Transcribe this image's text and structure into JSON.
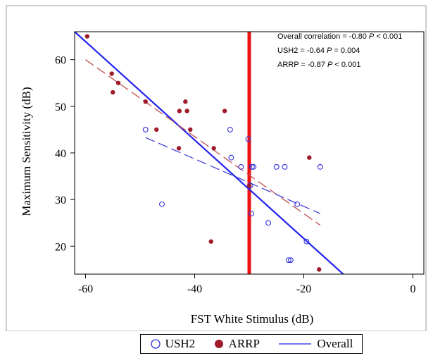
{
  "chart_data": {
    "type": "scatter",
    "xlabel": "FST White Stimulus (dB)",
    "ylabel": "Maximum Sensitivity (dB)",
    "xlim": [
      -62,
      2
    ],
    "ylim": [
      14,
      66
    ],
    "x_ticks": [
      -60,
      -40,
      -20,
      0
    ],
    "y_ticks": [
      20,
      30,
      40,
      50,
      60
    ],
    "grid": false,
    "legend_position": "bottom",
    "vertical_marker_x": -30,
    "annotations": [
      "Overall correlation = -0.80 P < 0.001",
      "USH2 = -0.64 P = 0.004",
      "ARRP = -0.87 P < 0.001"
    ],
    "series": [
      {
        "name": "USH2",
        "marker": "open-circle",
        "color": "#3333dd",
        "points": [
          [
            -49,
            45
          ],
          [
            -46,
            29
          ],
          [
            -33.5,
            45
          ],
          [
            -33.3,
            39
          ],
          [
            -31.5,
            37
          ],
          [
            -30.2,
            43
          ],
          [
            -29.8,
            33
          ],
          [
            -29.6,
            27
          ],
          [
            -29.5,
            37
          ],
          [
            -29.2,
            37
          ],
          [
            -26.5,
            25
          ],
          [
            -25,
            37
          ],
          [
            -23.5,
            37
          ],
          [
            -22.8,
            17
          ],
          [
            -22.4,
            17
          ],
          [
            -21.2,
            29
          ],
          [
            -19.5,
            21
          ],
          [
            -17,
            37
          ]
        ]
      },
      {
        "name": "ARRP",
        "marker": "filled-circle",
        "color": "#a01b2a",
        "points": [
          [
            -59.7,
            65
          ],
          [
            -55.2,
            57
          ],
          [
            -55,
            53
          ],
          [
            -54,
            55
          ],
          [
            -49,
            51
          ],
          [
            -47,
            45
          ],
          [
            -42.9,
            41
          ],
          [
            -42.8,
            49
          ],
          [
            -41.7,
            51
          ],
          [
            -41.4,
            49
          ],
          [
            -40.8,
            45
          ],
          [
            -37,
            21
          ],
          [
            -36.5,
            41
          ],
          [
            -34.5,
            49
          ],
          [
            -30,
            33
          ],
          [
            -19,
            39
          ],
          [
            -17.2,
            15
          ]
        ]
      },
      {
        "name": "Overall",
        "type": "line",
        "color": "#2222ee",
        "x": [
          -62,
          -12.3
        ],
        "y": [
          66,
          13.5
        ]
      },
      {
        "type": "dashed-line",
        "color": "#c0504d",
        "x": [
          -60,
          -17
        ],
        "y": [
          60,
          24.5
        ]
      },
      {
        "type": "dashed-line",
        "color": "#4444dd",
        "x": [
          -49,
          -17
        ],
        "y": [
          43.3,
          27
        ]
      }
    ]
  },
  "legend": {
    "items": [
      {
        "label": "USH2"
      },
      {
        "label": "ARRP"
      },
      {
        "label": "Overall"
      }
    ]
  }
}
